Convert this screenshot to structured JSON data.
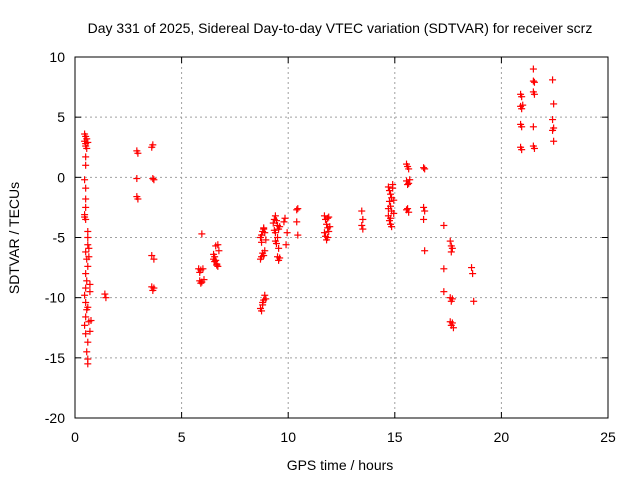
{
  "chart_data": {
    "type": "scatter",
    "title": "Day 331 of 2025, Sidereal Day-to-day VTEC variation (SDTVAR) for receiver scrz",
    "xlabel": "GPS time / hours",
    "ylabel": "SDTVAR / TECUs",
    "xlim": [
      0,
      25
    ],
    "ylim": [
      -20,
      10
    ],
    "xticks": [
      0,
      5,
      10,
      15,
      20,
      25
    ],
    "yticks": [
      -20,
      -15,
      -10,
      -5,
      0,
      5,
      10
    ],
    "grid": true,
    "marker": "+",
    "colors": {
      "marker": "#ff0000",
      "grid": "#a0a0a0",
      "axis": "#000000"
    },
    "series": [
      {
        "name": "SDTVAR",
        "points": [
          [
            0.45,
            3.6
          ],
          [
            0.5,
            3.4
          ],
          [
            0.55,
            3.2
          ],
          [
            0.45,
            3.0
          ],
          [
            0.5,
            2.8
          ],
          [
            0.6,
            2.9
          ],
          [
            0.5,
            2.6
          ],
          [
            0.55,
            2.4
          ],
          [
            0.5,
            1.7
          ],
          [
            0.5,
            1.0
          ],
          [
            0.45,
            -0.2
          ],
          [
            0.5,
            -0.9
          ],
          [
            0.5,
            -1.8
          ],
          [
            0.5,
            -2.5
          ],
          [
            0.45,
            -3.1
          ],
          [
            0.5,
            -3.5
          ],
          [
            0.45,
            -3.3
          ],
          [
            0.6,
            -4.5
          ],
          [
            0.6,
            -5.0
          ],
          [
            0.6,
            -5.6
          ],
          [
            0.5,
            -6.2
          ],
          [
            0.55,
            -6.8
          ],
          [
            0.6,
            -7.4
          ],
          [
            0.5,
            -8.0
          ],
          [
            0.55,
            -8.6
          ],
          [
            0.5,
            -9.2
          ],
          [
            0.45,
            -9.8
          ],
          [
            0.5,
            -10.4
          ],
          [
            0.55,
            -11.0
          ],
          [
            0.5,
            -11.6
          ],
          [
            0.45,
            -12.3
          ],
          [
            0.5,
            -13.0
          ],
          [
            0.6,
            -13.7
          ],
          [
            0.55,
            -14.5
          ],
          [
            0.6,
            -15.1
          ],
          [
            0.6,
            -15.5
          ],
          [
            0.65,
            -12.0
          ],
          [
            0.6,
            -10.8
          ],
          [
            0.7,
            -8.9
          ],
          [
            0.65,
            -6.6
          ],
          [
            0.7,
            -9.5
          ],
          [
            0.75,
            -11.9
          ],
          [
            0.7,
            -12.8
          ],
          [
            0.65,
            -5.9
          ],
          [
            1.4,
            -9.7
          ],
          [
            1.45,
            -10.0
          ],
          [
            2.9,
            2.2
          ],
          [
            2.95,
            2.0
          ],
          [
            2.9,
            -0.1
          ],
          [
            2.9,
            -1.6
          ],
          [
            2.95,
            -1.8
          ],
          [
            3.65,
            2.7
          ],
          [
            3.6,
            2.5
          ],
          [
            3.65,
            -0.1
          ],
          [
            3.7,
            -0.2
          ],
          [
            3.6,
            -6.5
          ],
          [
            3.7,
            -6.8
          ],
          [
            3.6,
            -9.1
          ],
          [
            3.65,
            -9.4
          ],
          [
            3.7,
            -9.2
          ],
          [
            5.8,
            -7.6
          ],
          [
            5.85,
            -7.9
          ],
          [
            5.9,
            -7.7
          ],
          [
            5.85,
            -8.6
          ],
          [
            5.9,
            -8.8
          ],
          [
            5.95,
            -8.7
          ],
          [
            5.95,
            -4.7
          ],
          [
            6.0,
            -7.6
          ],
          [
            6.05,
            -8.5
          ],
          [
            6.5,
            -6.4
          ],
          [
            6.55,
            -6.6
          ],
          [
            6.6,
            -6.9
          ],
          [
            6.65,
            -7.2
          ],
          [
            6.7,
            -7.4
          ],
          [
            6.55,
            -7.0
          ],
          [
            6.6,
            -5.7
          ],
          [
            6.7,
            -5.6
          ],
          [
            6.75,
            -6.1
          ],
          [
            6.5,
            -6.8
          ],
          [
            6.65,
            -7.3
          ],
          [
            8.7,
            -10.9
          ],
          [
            8.75,
            -11.1
          ],
          [
            8.8,
            -10.6
          ],
          [
            8.85,
            -10.2
          ],
          [
            8.9,
            -9.8
          ],
          [
            8.95,
            -10.1
          ],
          [
            8.8,
            -10.4
          ],
          [
            8.7,
            -6.8
          ],
          [
            8.75,
            -6.6
          ],
          [
            8.8,
            -6.3
          ],
          [
            8.85,
            -6.5
          ],
          [
            8.9,
            -6.1
          ],
          [
            8.7,
            -5.0
          ],
          [
            8.75,
            -4.8
          ],
          [
            8.8,
            -4.5
          ],
          [
            8.85,
            -4.3
          ],
          [
            8.9,
            -4.6
          ],
          [
            8.95,
            -5.2
          ],
          [
            8.75,
            -5.4
          ],
          [
            8.85,
            -4.2
          ],
          [
            9.3,
            -3.8
          ],
          [
            9.35,
            -3.5
          ],
          [
            9.4,
            -3.2
          ],
          [
            9.45,
            -3.6
          ],
          [
            9.5,
            -4.0
          ],
          [
            9.55,
            -4.3
          ],
          [
            9.4,
            -4.6
          ],
          [
            9.5,
            -5.0
          ],
          [
            9.45,
            -5.5
          ],
          [
            9.55,
            -5.9
          ],
          [
            9.5,
            -6.6
          ],
          [
            9.55,
            -6.9
          ],
          [
            9.6,
            -6.7
          ],
          [
            9.4,
            -5.3
          ],
          [
            9.6,
            -4.1
          ],
          [
            9.35,
            -4.4
          ],
          [
            9.8,
            -3.7
          ],
          [
            9.85,
            -3.4
          ],
          [
            9.9,
            -5.6
          ],
          [
            9.95,
            -4.6
          ],
          [
            10.4,
            -2.7
          ],
          [
            10.45,
            -2.6
          ],
          [
            10.4,
            -3.7
          ],
          [
            10.45,
            -4.8
          ],
          [
            11.7,
            -3.2
          ],
          [
            11.75,
            -3.5
          ],
          [
            11.8,
            -3.9
          ],
          [
            11.85,
            -4.2
          ],
          [
            11.9,
            -4.5
          ],
          [
            11.75,
            -4.9
          ],
          [
            11.8,
            -5.2
          ],
          [
            11.85,
            -5.0
          ],
          [
            11.9,
            -3.3
          ],
          [
            11.7,
            -4.6
          ],
          [
            11.95,
            -4.1
          ],
          [
            11.85,
            -3.4
          ],
          [
            13.45,
            -2.8
          ],
          [
            13.5,
            -3.5
          ],
          [
            13.45,
            -4.0
          ],
          [
            13.5,
            -4.3
          ],
          [
            14.7,
            -0.8
          ],
          [
            14.75,
            -1.1
          ],
          [
            14.8,
            -1.4
          ],
          [
            14.85,
            -1.7
          ],
          [
            14.9,
            -0.9
          ],
          [
            14.75,
            -2.0
          ],
          [
            14.8,
            -2.4
          ],
          [
            14.85,
            -2.8
          ],
          [
            14.7,
            -3.2
          ],
          [
            14.75,
            -3.6
          ],
          [
            14.8,
            -3.9
          ],
          [
            14.85,
            -4.1
          ],
          [
            14.9,
            -0.6
          ],
          [
            14.95,
            -1.9
          ],
          [
            14.7,
            -2.6
          ],
          [
            14.95,
            -3.0
          ],
          [
            14.8,
            -3.4
          ],
          [
            15.55,
            1.1
          ],
          [
            15.6,
            0.9
          ],
          [
            15.65,
            0.7
          ],
          [
            15.55,
            -0.3
          ],
          [
            15.6,
            -0.6
          ],
          [
            15.65,
            -0.5
          ],
          [
            15.7,
            -0.2
          ],
          [
            15.6,
            -2.6
          ],
          [
            15.65,
            -2.9
          ],
          [
            15.55,
            -2.7
          ],
          [
            16.35,
            0.8
          ],
          [
            16.4,
            0.7
          ],
          [
            16.35,
            -2.5
          ],
          [
            16.4,
            -2.8
          ],
          [
            16.35,
            -3.5
          ],
          [
            16.4,
            -6.1
          ],
          [
            17.3,
            -4.0
          ],
          [
            17.3,
            -7.6
          ],
          [
            17.3,
            -9.5
          ],
          [
            17.6,
            -5.3
          ],
          [
            17.65,
            -5.7
          ],
          [
            17.7,
            -5.9
          ],
          [
            17.65,
            -6.2
          ],
          [
            17.6,
            -10.0
          ],
          [
            17.65,
            -10.3
          ],
          [
            17.7,
            -10.1
          ],
          [
            17.6,
            -12.0
          ],
          [
            17.65,
            -12.3
          ],
          [
            17.7,
            -12.1
          ],
          [
            17.75,
            -12.5
          ],
          [
            18.6,
            -7.5
          ],
          [
            18.65,
            -8.0
          ],
          [
            18.7,
            -10.3
          ],
          [
            20.9,
            6.9
          ],
          [
            20.95,
            6.7
          ],
          [
            20.9,
            5.9
          ],
          [
            20.95,
            5.7
          ],
          [
            21.0,
            6.0
          ],
          [
            20.9,
            4.4
          ],
          [
            20.95,
            4.2
          ],
          [
            20.9,
            2.5
          ],
          [
            20.95,
            2.3
          ],
          [
            21.5,
            9.0
          ],
          [
            21.5,
            8.0
          ],
          [
            21.55,
            7.9
          ],
          [
            21.5,
            7.1
          ],
          [
            21.55,
            6.9
          ],
          [
            21.5,
            4.2
          ],
          [
            21.5,
            2.6
          ],
          [
            21.55,
            2.4
          ],
          [
            22.4,
            8.1
          ],
          [
            22.45,
            6.1
          ],
          [
            22.4,
            4.8
          ],
          [
            22.45,
            4.1
          ],
          [
            22.4,
            3.9
          ],
          [
            22.45,
            3.0
          ]
        ]
      }
    ]
  }
}
